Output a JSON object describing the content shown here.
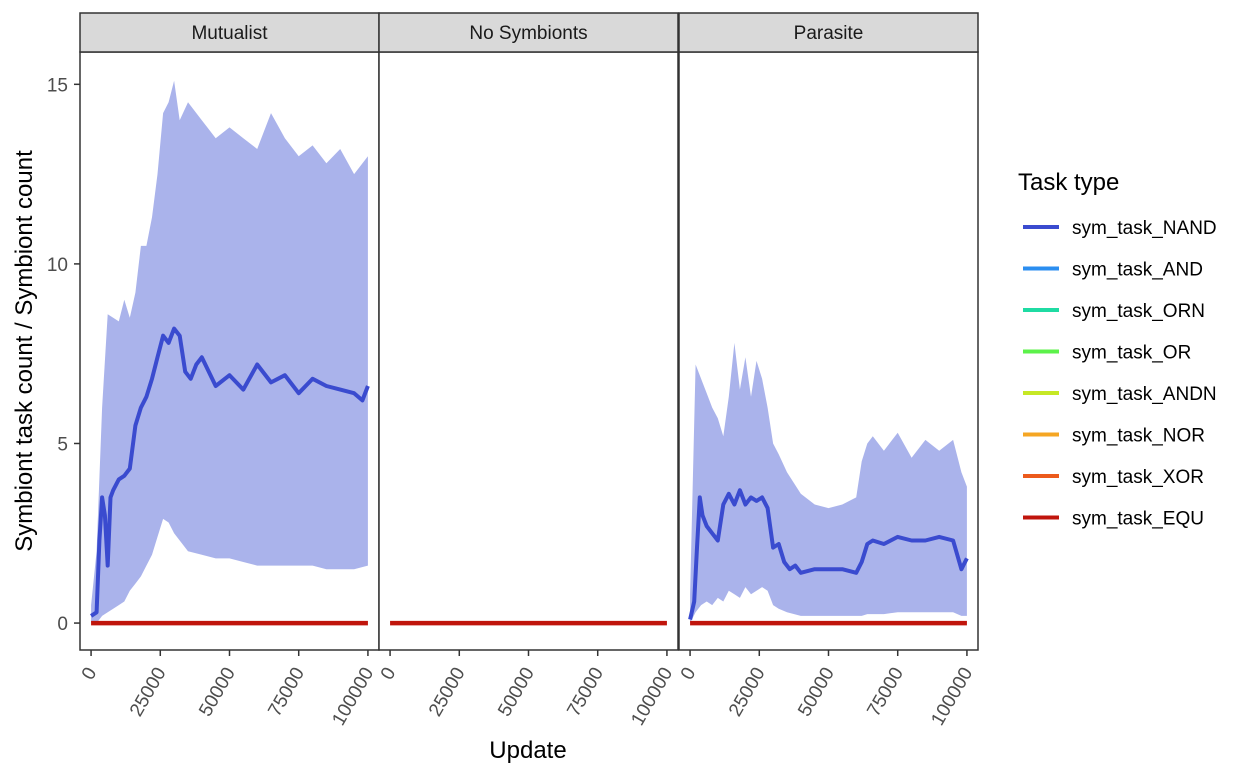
{
  "chart_data": {
    "type": "line",
    "xlabel": "Update",
    "ylabel": "Symbiont task count / Symbiont count",
    "xlim": [
      -4000,
      104000
    ],
    "ylim": [
      -0.75,
      15.9
    ],
    "x_ticks": [
      0,
      25000,
      50000,
      75000,
      100000
    ],
    "x_tick_labels": [
      "0",
      "25000",
      "50000",
      "75000",
      "100000"
    ],
    "y_ticks": [
      0,
      5,
      10,
      15
    ],
    "y_tick_labels": [
      "0",
      "5",
      "10",
      "15"
    ],
    "legend": {
      "title": "Task type",
      "placement": "right",
      "items": [
        {
          "label": "sym_task_NAND",
          "color": "#3a4bcf"
        },
        {
          "label": "sym_task_AND",
          "color": "#2b8ef0"
        },
        {
          "label": "sym_task_ORN",
          "color": "#1fdba3"
        },
        {
          "label": "sym_task_OR",
          "color": "#5cf24a"
        },
        {
          "label": "sym_task_ANDN",
          "color": "#c6e825"
        },
        {
          "label": "sym_task_NOR",
          "color": "#f5a623"
        },
        {
          "label": "sym_task_XOR",
          "color": "#ec5a1c"
        },
        {
          "label": "sym_task_EQU",
          "color": "#c0150c"
        }
      ]
    },
    "band_color": "#aab3eb",
    "panels": [
      {
        "name": "Mutualist",
        "nand": {
          "x": [
            0,
            2000,
            3000,
            4000,
            5000,
            6000,
            7000,
            8000,
            10000,
            12000,
            14000,
            16000,
            18000,
            20000,
            22000,
            24000,
            26000,
            28000,
            30000,
            32000,
            34000,
            36000,
            38000,
            40000,
            45000,
            50000,
            55000,
            60000,
            65000,
            70000,
            75000,
            80000,
            85000,
            90000,
            95000,
            98000,
            100000
          ],
          "y": [
            0.2,
            0.3,
            2.3,
            3.5,
            3.0,
            1.6,
            3.5,
            3.7,
            4.0,
            4.1,
            4.3,
            5.5,
            6.0,
            6.3,
            6.8,
            7.4,
            8.0,
            7.8,
            8.2,
            8.0,
            7.0,
            6.8,
            7.2,
            7.4,
            6.6,
            6.9,
            6.5,
            7.2,
            6.7,
            6.9,
            6.4,
            6.8,
            6.6,
            6.5,
            6.4,
            6.2,
            6.6
          ]
        },
        "band": {
          "x": [
            0,
            2000,
            4000,
            6000,
            8000,
            10000,
            12000,
            14000,
            16000,
            18000,
            20000,
            22000,
            24000,
            26000,
            28000,
            30000,
            32000,
            35000,
            40000,
            45000,
            50000,
            55000,
            60000,
            65000,
            70000,
            75000,
            80000,
            85000,
            90000,
            95000,
            100000
          ],
          "upper": [
            0.5,
            2.0,
            6.0,
            8.6,
            8.5,
            8.4,
            9.0,
            8.5,
            9.2,
            10.5,
            10.5,
            11.3,
            12.5,
            14.2,
            14.5,
            15.1,
            14.0,
            14.5,
            14.0,
            13.5,
            13.8,
            13.5,
            13.2,
            14.2,
            13.5,
            13.0,
            13.3,
            12.8,
            13.2,
            12.5,
            13.0
          ],
          "lower": [
            0.0,
            0.0,
            0.2,
            0.3,
            0.4,
            0.5,
            0.6,
            0.9,
            1.1,
            1.3,
            1.6,
            1.9,
            2.4,
            2.9,
            2.8,
            2.5,
            2.3,
            2.0,
            1.9,
            1.8,
            1.8,
            1.7,
            1.6,
            1.6,
            1.6,
            1.6,
            1.6,
            1.5,
            1.5,
            1.5,
            1.6
          ]
        },
        "equ_y": 0
      },
      {
        "name": "No Symbionts",
        "nand": null,
        "band": null,
        "equ_y": 0
      },
      {
        "name": "Parasite",
        "nand": {
          "x": [
            0,
            1500,
            2500,
            3500,
            4500,
            6000,
            8000,
            10000,
            12000,
            14000,
            16000,
            18000,
            20000,
            22000,
            24000,
            26000,
            28000,
            30000,
            32000,
            34000,
            36000,
            38000,
            40000,
            45000,
            50000,
            55000,
            60000,
            62000,
            64000,
            66000,
            70000,
            75000,
            80000,
            85000,
            90000,
            95000,
            98000,
            100000
          ],
          "y": [
            0.1,
            0.6,
            2.1,
            3.5,
            3.0,
            2.7,
            2.5,
            2.3,
            3.3,
            3.6,
            3.3,
            3.7,
            3.3,
            3.5,
            3.4,
            3.5,
            3.2,
            2.1,
            2.2,
            1.7,
            1.5,
            1.6,
            1.4,
            1.5,
            1.5,
            1.5,
            1.4,
            1.7,
            2.2,
            2.3,
            2.2,
            2.4,
            2.3,
            2.3,
            2.4,
            2.3,
            1.5,
            1.8
          ]
        },
        "band": {
          "x": [
            0,
            2000,
            4000,
            6000,
            8000,
            10000,
            12000,
            14000,
            16000,
            18000,
            20000,
            22000,
            24000,
            26000,
            28000,
            30000,
            32000,
            35000,
            40000,
            45000,
            50000,
            55000,
            60000,
            62000,
            64000,
            66000,
            70000,
            75000,
            80000,
            85000,
            90000,
            95000,
            98000,
            100000
          ],
          "upper": [
            0.8,
            7.2,
            6.8,
            6.4,
            6.0,
            5.7,
            5.2,
            6.3,
            7.8,
            6.5,
            7.4,
            6.3,
            7.3,
            6.8,
            6.0,
            5.0,
            4.7,
            4.2,
            3.6,
            3.3,
            3.2,
            3.3,
            3.5,
            4.5,
            5.0,
            5.2,
            4.8,
            5.3,
            4.6,
            5.1,
            4.8,
            5.1,
            4.2,
            3.8
          ],
          "lower": [
            0.0,
            0.3,
            0.5,
            0.6,
            0.5,
            0.7,
            0.6,
            0.9,
            0.8,
            0.7,
            1.0,
            0.8,
            0.9,
            1.0,
            0.9,
            0.5,
            0.4,
            0.3,
            0.2,
            0.2,
            0.2,
            0.2,
            0.2,
            0.2,
            0.25,
            0.25,
            0.25,
            0.3,
            0.3,
            0.3,
            0.3,
            0.3,
            0.2,
            0.2
          ]
        },
        "equ_y": 0
      }
    ]
  }
}
